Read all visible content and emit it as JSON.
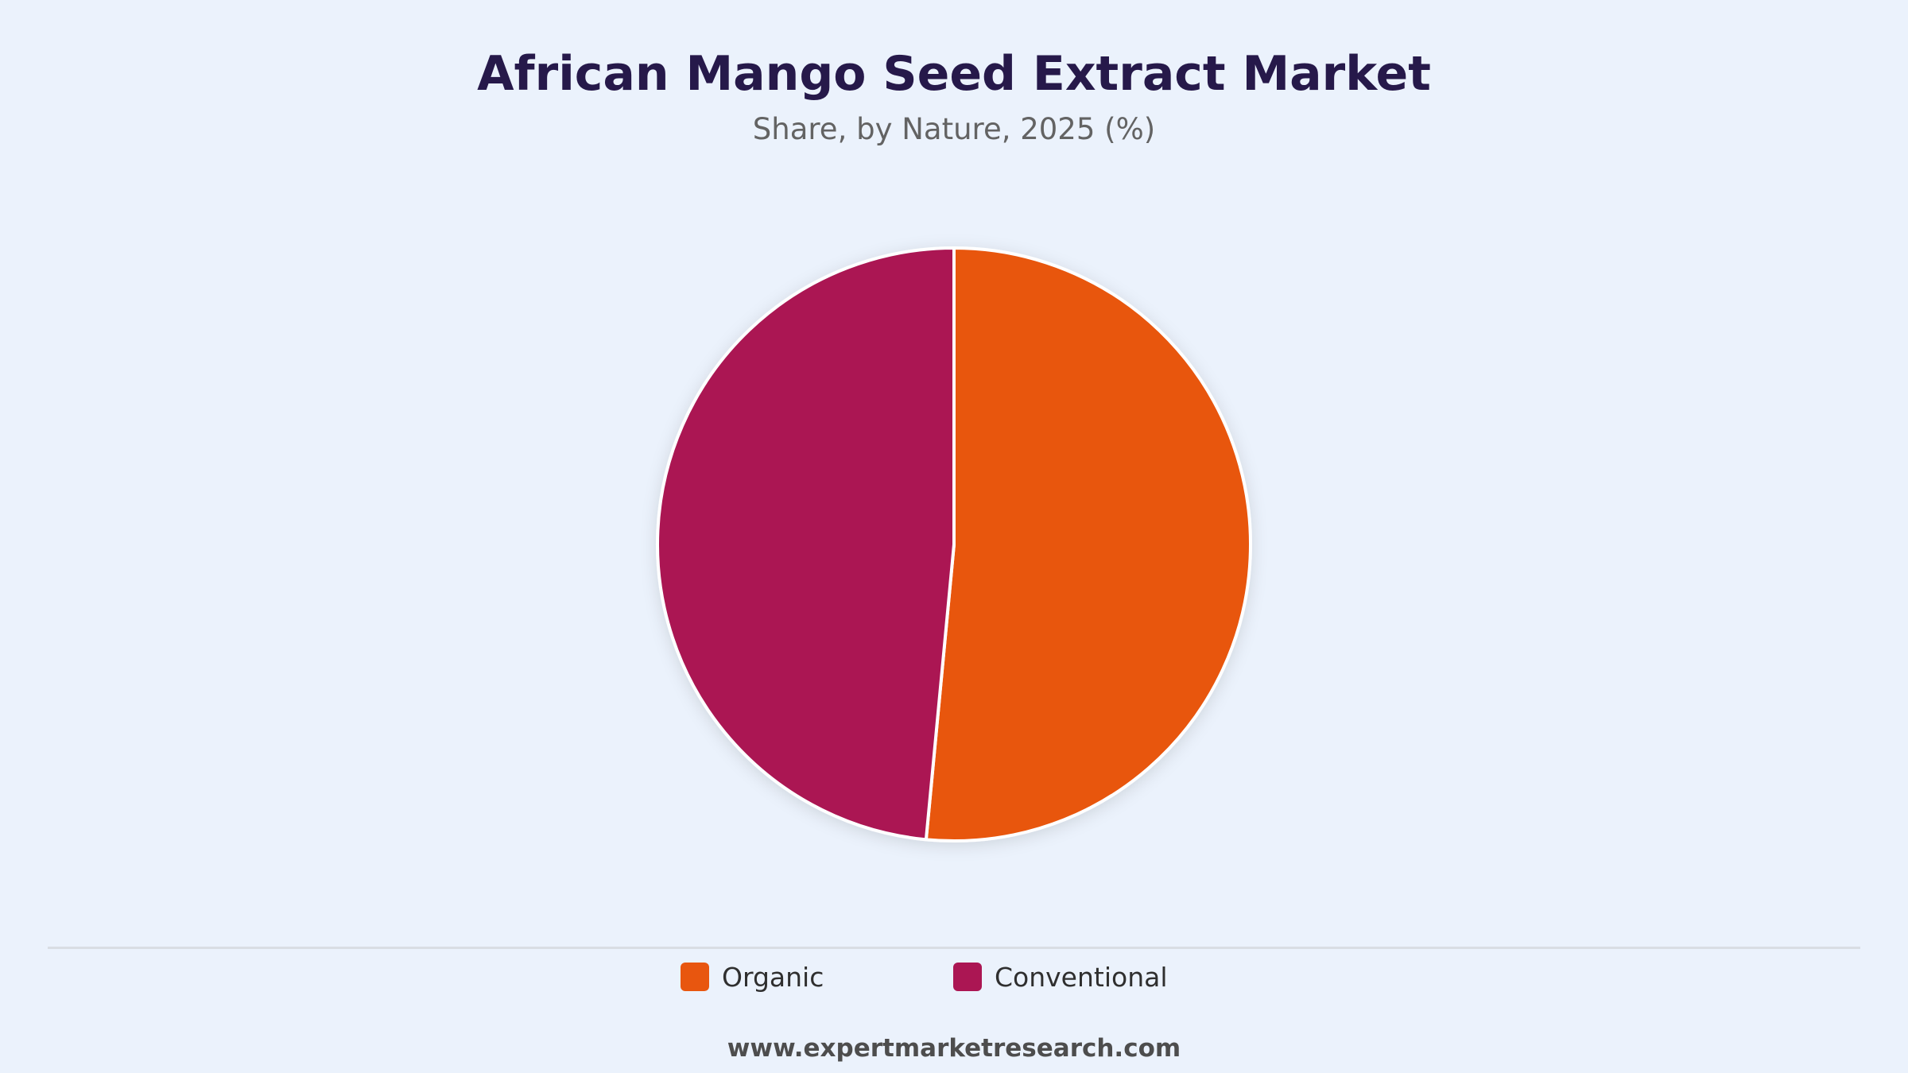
{
  "chart_data": {
    "type": "pie",
    "title": "African Mango Seed Extract Market",
    "subtitle": "Share, by Nature, 2025 (%)",
    "categories": [
      "Organic",
      "Conventional"
    ],
    "values": [
      51.5,
      48.5
    ],
    "colors": [
      "#e8560f",
      "#ab1653"
    ],
    "legend_position": "bottom"
  },
  "footer": {
    "source": "www.expertmarketresearch.com"
  }
}
